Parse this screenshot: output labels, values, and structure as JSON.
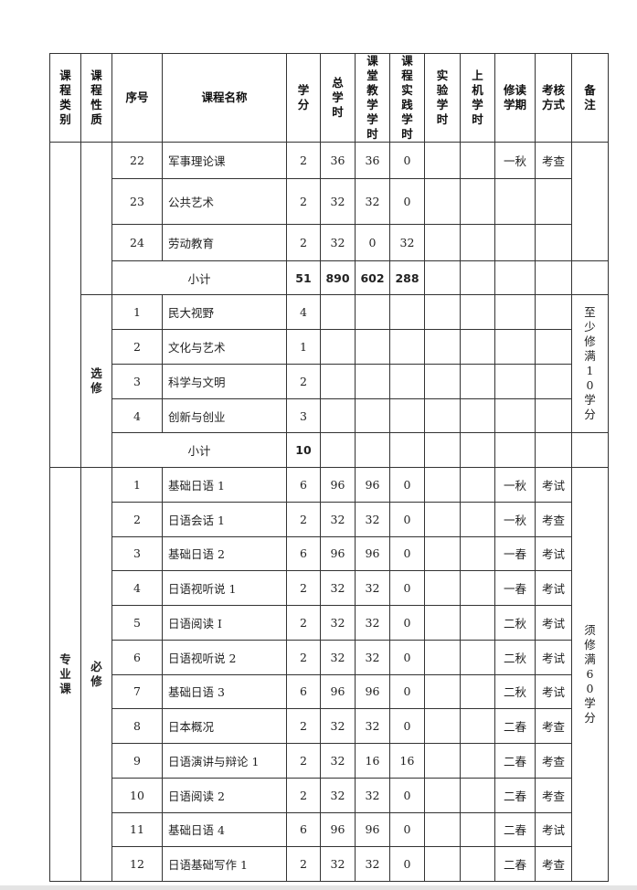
{
  "headers": [
    "课程类别",
    "课程性质",
    "序号",
    "课程名称",
    "学分",
    "总学时",
    "课堂教学学时",
    "课程实践学时",
    "实验学时",
    "上机学时",
    "修读学期",
    "考核方式",
    "备注"
  ],
  "sections": {
    "general_required_tail": {
      "rows": [
        {
          "no": "22",
          "name": "军事理论课",
          "credit": "2",
          "total": "36",
          "class": "36",
          "practice": "0",
          "lab": "",
          "computer": "",
          "term": "一秋",
          "exam": "考查"
        },
        {
          "no": "23",
          "name": "公共艺术",
          "credit": "2",
          "total": "32",
          "class": "32",
          "practice": "0",
          "lab": "",
          "computer": "",
          "term": "",
          "exam": ""
        },
        {
          "no": "24",
          "name": "劳动教育",
          "credit": "2",
          "total": "32",
          "class": "0",
          "practice": "32",
          "lab": "",
          "computer": "",
          "term": "",
          "exam": ""
        }
      ],
      "subtotal": {
        "label": "小计",
        "credit": "51",
        "total": "890",
        "class": "602",
        "practice": "288"
      }
    },
    "general_elective": {
      "nature": "选修",
      "note": "至少修满10学分",
      "rows": [
        {
          "no": "1",
          "name": "民大视野",
          "credit": "4"
        },
        {
          "no": "2",
          "name": "文化与艺术",
          "credit": "1"
        },
        {
          "no": "3",
          "name": "科学与文明",
          "credit": "2"
        },
        {
          "no": "4",
          "name": "创新与创业",
          "credit": "3"
        }
      ],
      "subtotal": {
        "label": "小计",
        "credit": "10"
      }
    },
    "major_required": {
      "category": "专业课",
      "nature": "必修",
      "note": "须修满60学分",
      "rows": [
        {
          "no": "1",
          "name": "基础日语 1",
          "credit": "6",
          "total": "96",
          "class": "96",
          "practice": "0",
          "term": "一秋",
          "exam": "考试"
        },
        {
          "no": "2",
          "name": "日语会话 1",
          "credit": "2",
          "total": "32",
          "class": "32",
          "practice": "0",
          "term": "一秋",
          "exam": "考查"
        },
        {
          "no": "3",
          "name": "基础日语 2",
          "credit": "6",
          "total": "96",
          "class": "96",
          "practice": "0",
          "term": "一春",
          "exam": "考试"
        },
        {
          "no": "4",
          "name": "日语视听说 1",
          "credit": "2",
          "total": "32",
          "class": "32",
          "practice": "0",
          "term": "一春",
          "exam": "考试"
        },
        {
          "no": "5",
          "name": "日语阅读 I",
          "credit": "2",
          "total": "32",
          "class": "32",
          "practice": "0",
          "term": "二秋",
          "exam": "考试"
        },
        {
          "no": "6",
          "name": "日语视听说 2",
          "credit": "2",
          "total": "32",
          "class": "32",
          "practice": "0",
          "term": "二秋",
          "exam": "考试"
        },
        {
          "no": "7",
          "name": "基础日语 3",
          "credit": "6",
          "total": "96",
          "class": "96",
          "practice": "0",
          "term": "二秋",
          "exam": "考试"
        },
        {
          "no": "8",
          "name": "日本概况",
          "credit": "2",
          "total": "32",
          "class": "32",
          "practice": "0",
          "term": "二春",
          "exam": "考查"
        },
        {
          "no": "9",
          "name": "日语演讲与辩论 1",
          "credit": "2",
          "total": "32",
          "class": "16",
          "practice": "16",
          "term": "二春",
          "exam": "考查"
        },
        {
          "no": "10",
          "name": "日语阅读 2",
          "credit": "2",
          "total": "32",
          "class": "32",
          "practice": "0",
          "term": "二春",
          "exam": "考查"
        },
        {
          "no": "11",
          "name": "基础日语 4",
          "credit": "6",
          "total": "96",
          "class": "96",
          "practice": "0",
          "term": "二春",
          "exam": "考试"
        },
        {
          "no": "12",
          "name": "日语基础写作 1",
          "credit": "2",
          "total": "32",
          "class": "32",
          "practice": "0",
          "term": "二春",
          "exam": "考查"
        }
      ]
    }
  }
}
